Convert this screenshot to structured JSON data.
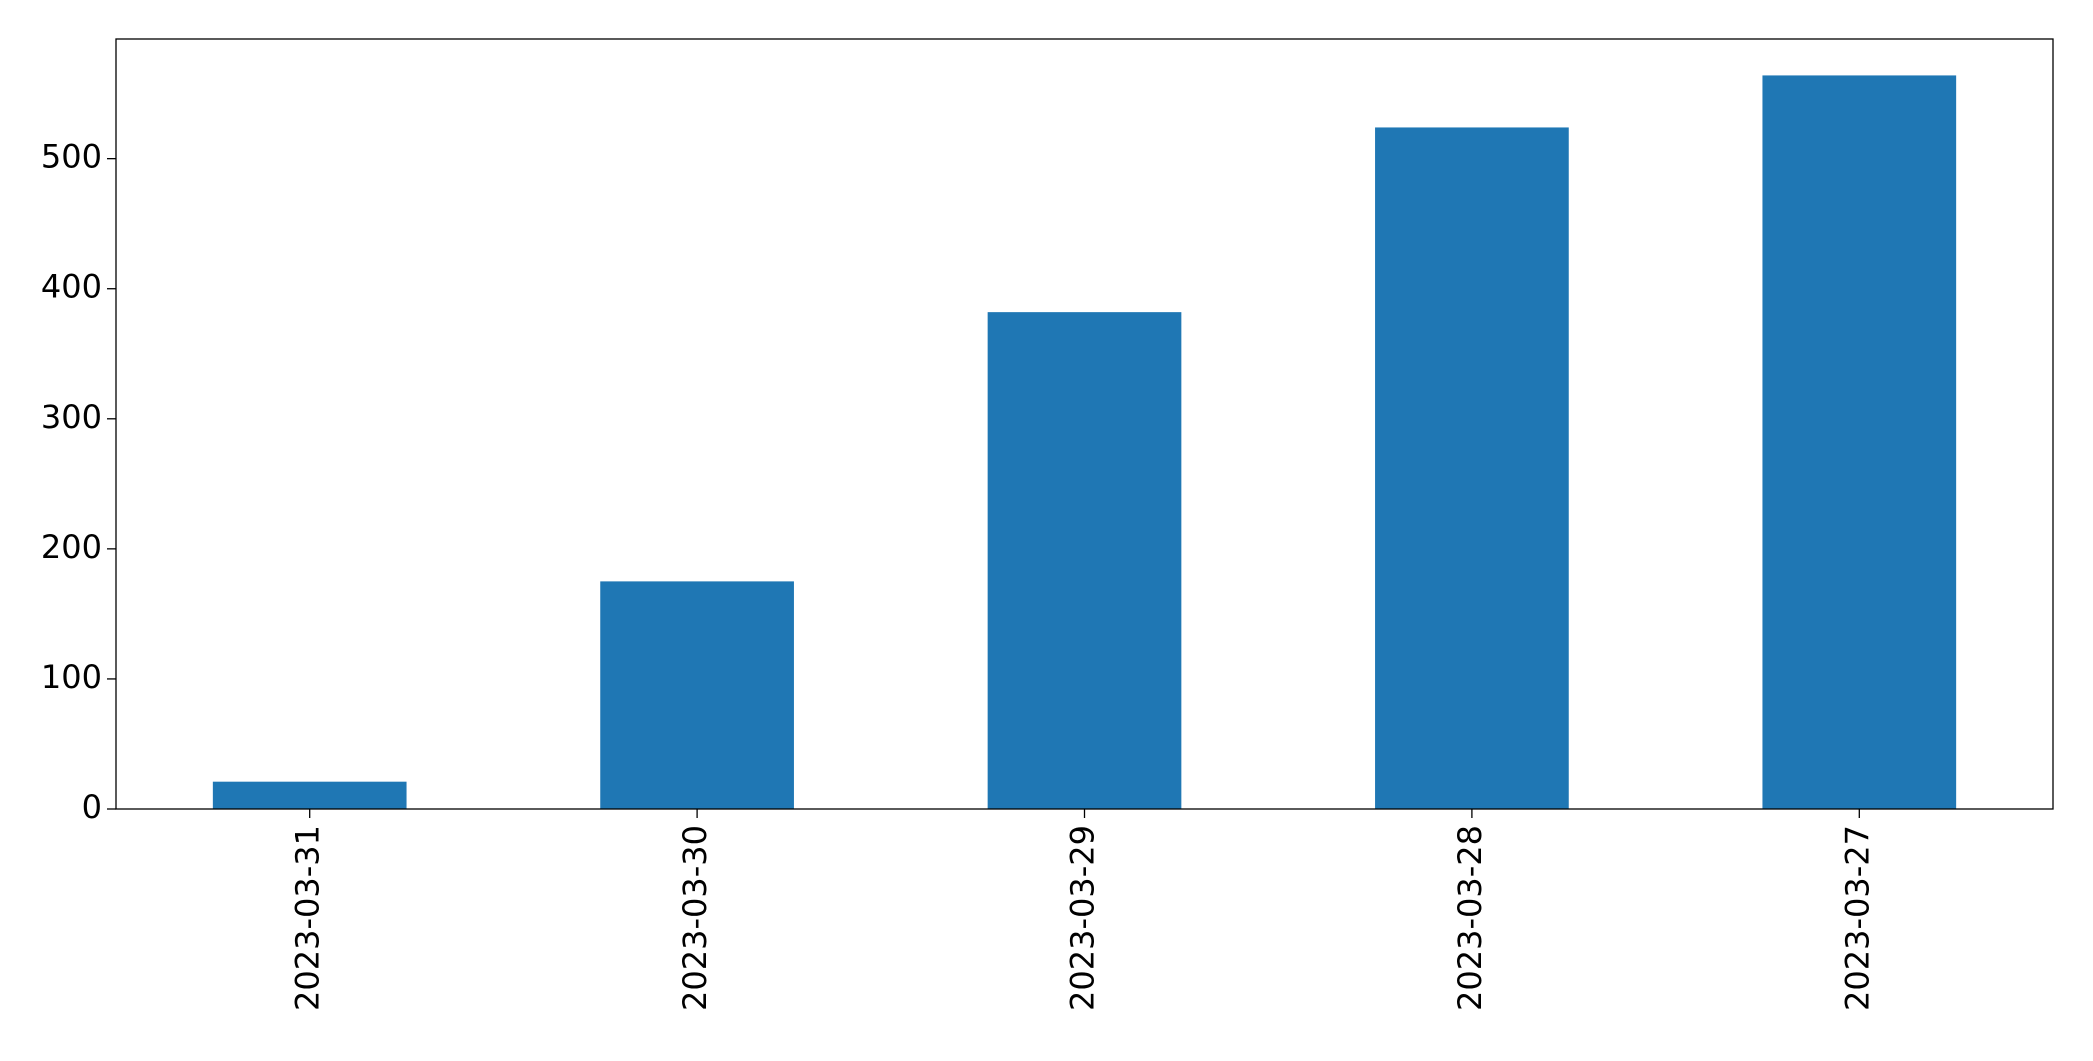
{
  "chart_data": {
    "type": "bar",
    "categories": [
      "2023-03-31",
      "2023-03-30",
      "2023-03-29",
      "2023-03-28",
      "2023-03-27"
    ],
    "values": [
      21,
      175,
      382,
      524,
      564
    ],
    "color": "#1f77b4",
    "ylim": [
      0,
      592
    ],
    "yticks": [
      0,
      100,
      200,
      300,
      400,
      500
    ],
    "grid": false
  }
}
